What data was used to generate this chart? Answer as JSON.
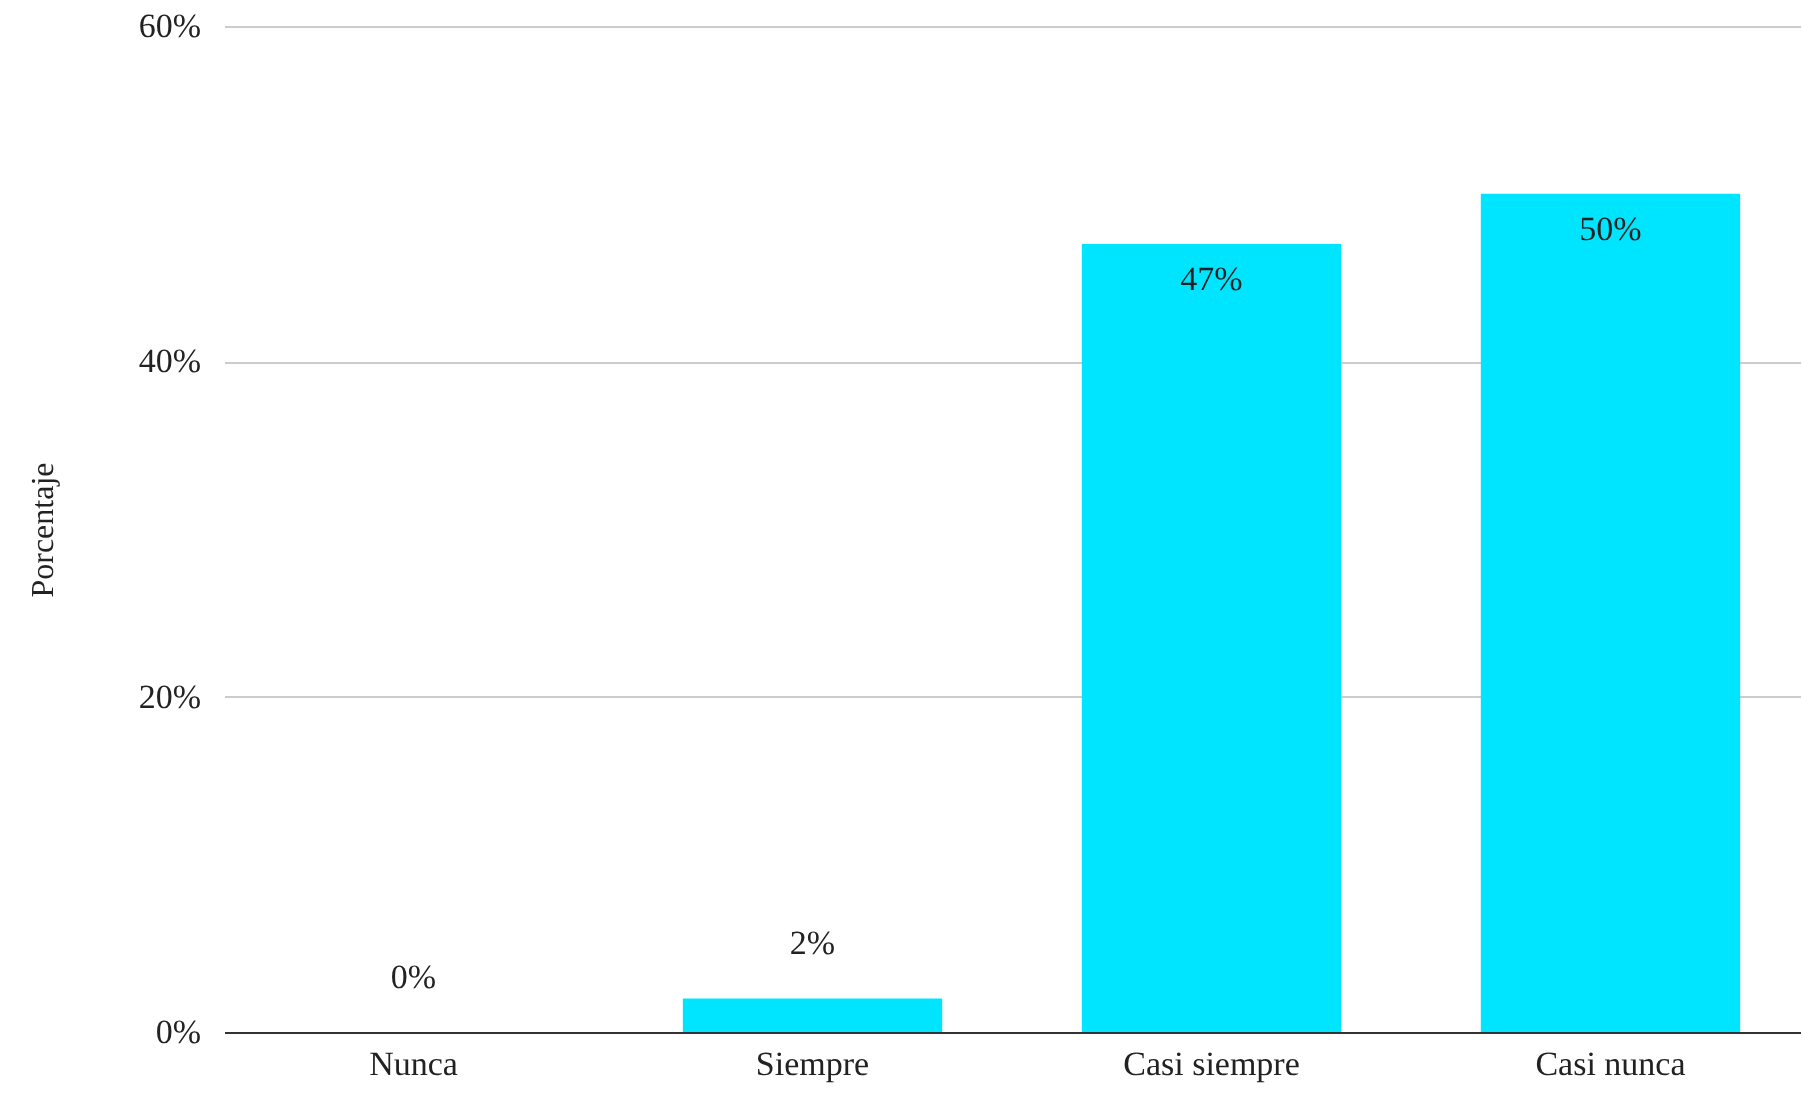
{
  "chart_data": {
    "type": "bar",
    "ylabel": "Porcentaje",
    "categories": [
      "Nunca",
      "Siempre",
      "Casi siempre",
      "Casi nunca"
    ],
    "values": [
      0,
      2,
      47,
      50
    ],
    "value_labels": [
      "0%",
      "2%",
      "47%",
      "50%"
    ],
    "color": "#00e5ff",
    "ylim": [
      0,
      60
    ],
    "yticks": [
      {
        "value": 0,
        "label": "0%"
      },
      {
        "value": 20,
        "label": "20%"
      },
      {
        "value": 40,
        "label": "40%"
      },
      {
        "value": 60,
        "label": "60%"
      }
    ],
    "grid": "y"
  }
}
